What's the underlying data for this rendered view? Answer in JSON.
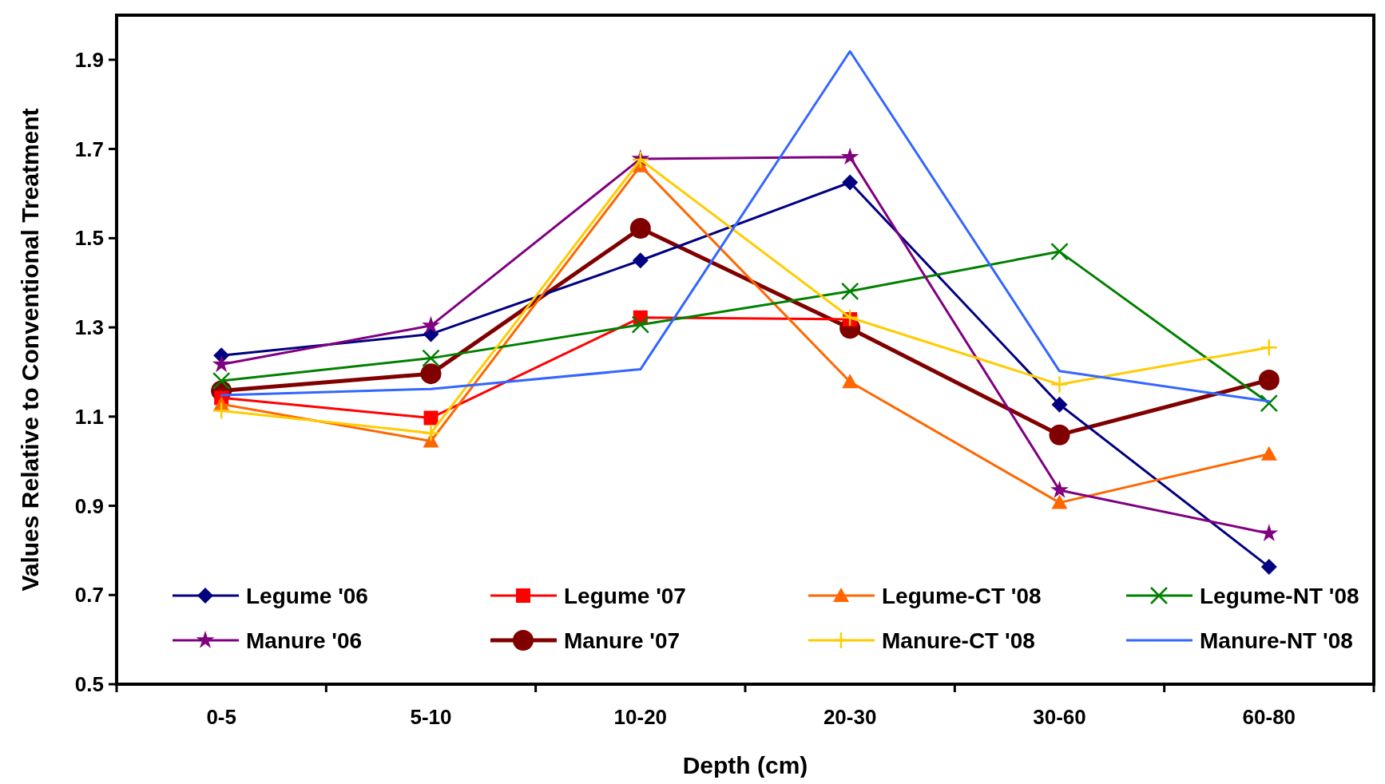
{
  "chart_data": {
    "type": "line",
    "xlabel": "Depth (cm)",
    "ylabel": "Values Relative to Conventional Treatment",
    "categories": [
      "0-5",
      "5-10",
      "10-20",
      "20-30",
      "30-60",
      "60-80"
    ],
    "ylim": [
      0.5,
      2.0
    ],
    "yticks": [
      0.5,
      0.7,
      0.9,
      1.1,
      1.3,
      1.5,
      1.7,
      1.9
    ],
    "grid": false,
    "legend": "bottom",
    "line_style": "solid",
    "series": [
      {
        "name": "Legume '06",
        "color": "#000080",
        "marker": "diamond",
        "values": [
          1.237,
          1.285,
          1.45,
          1.625,
          1.127,
          0.763
        ]
      },
      {
        "name": "Legume '07",
        "color": "#ff0000",
        "marker": "square",
        "values": [
          1.142,
          1.097,
          1.322,
          1.318,
          null,
          null
        ]
      },
      {
        "name": "Legume-CT '08",
        "color": "#ff6600",
        "marker": "triangle",
        "values": [
          1.128,
          1.045,
          1.662,
          1.178,
          0.907,
          1.016
        ]
      },
      {
        "name": "Legume-NT '08",
        "color": "#008000",
        "marker": "cross",
        "values": [
          1.18,
          1.231,
          1.306,
          1.381,
          1.47,
          1.13
        ]
      },
      {
        "name": "Manure '06",
        "color": "#800080",
        "marker": "star",
        "values": [
          1.217,
          1.304,
          1.678,
          1.682,
          0.935,
          0.838
        ]
      },
      {
        "name": "Manure '07",
        "color": "#800000",
        "marker": "circle",
        "values": [
          1.158,
          1.196,
          1.522,
          1.298,
          1.059,
          1.182
        ]
      },
      {
        "name": "Manure-CT '08",
        "color": "#ffcc00",
        "marker": "plus",
        "values": [
          1.113,
          1.063,
          1.676,
          1.322,
          1.172,
          1.255
        ]
      },
      {
        "name": "Manure-NT '08",
        "color": "#3366ff",
        "marker": "none",
        "values": [
          1.148,
          1.162,
          1.206,
          1.919,
          1.202,
          1.134
        ]
      }
    ]
  }
}
